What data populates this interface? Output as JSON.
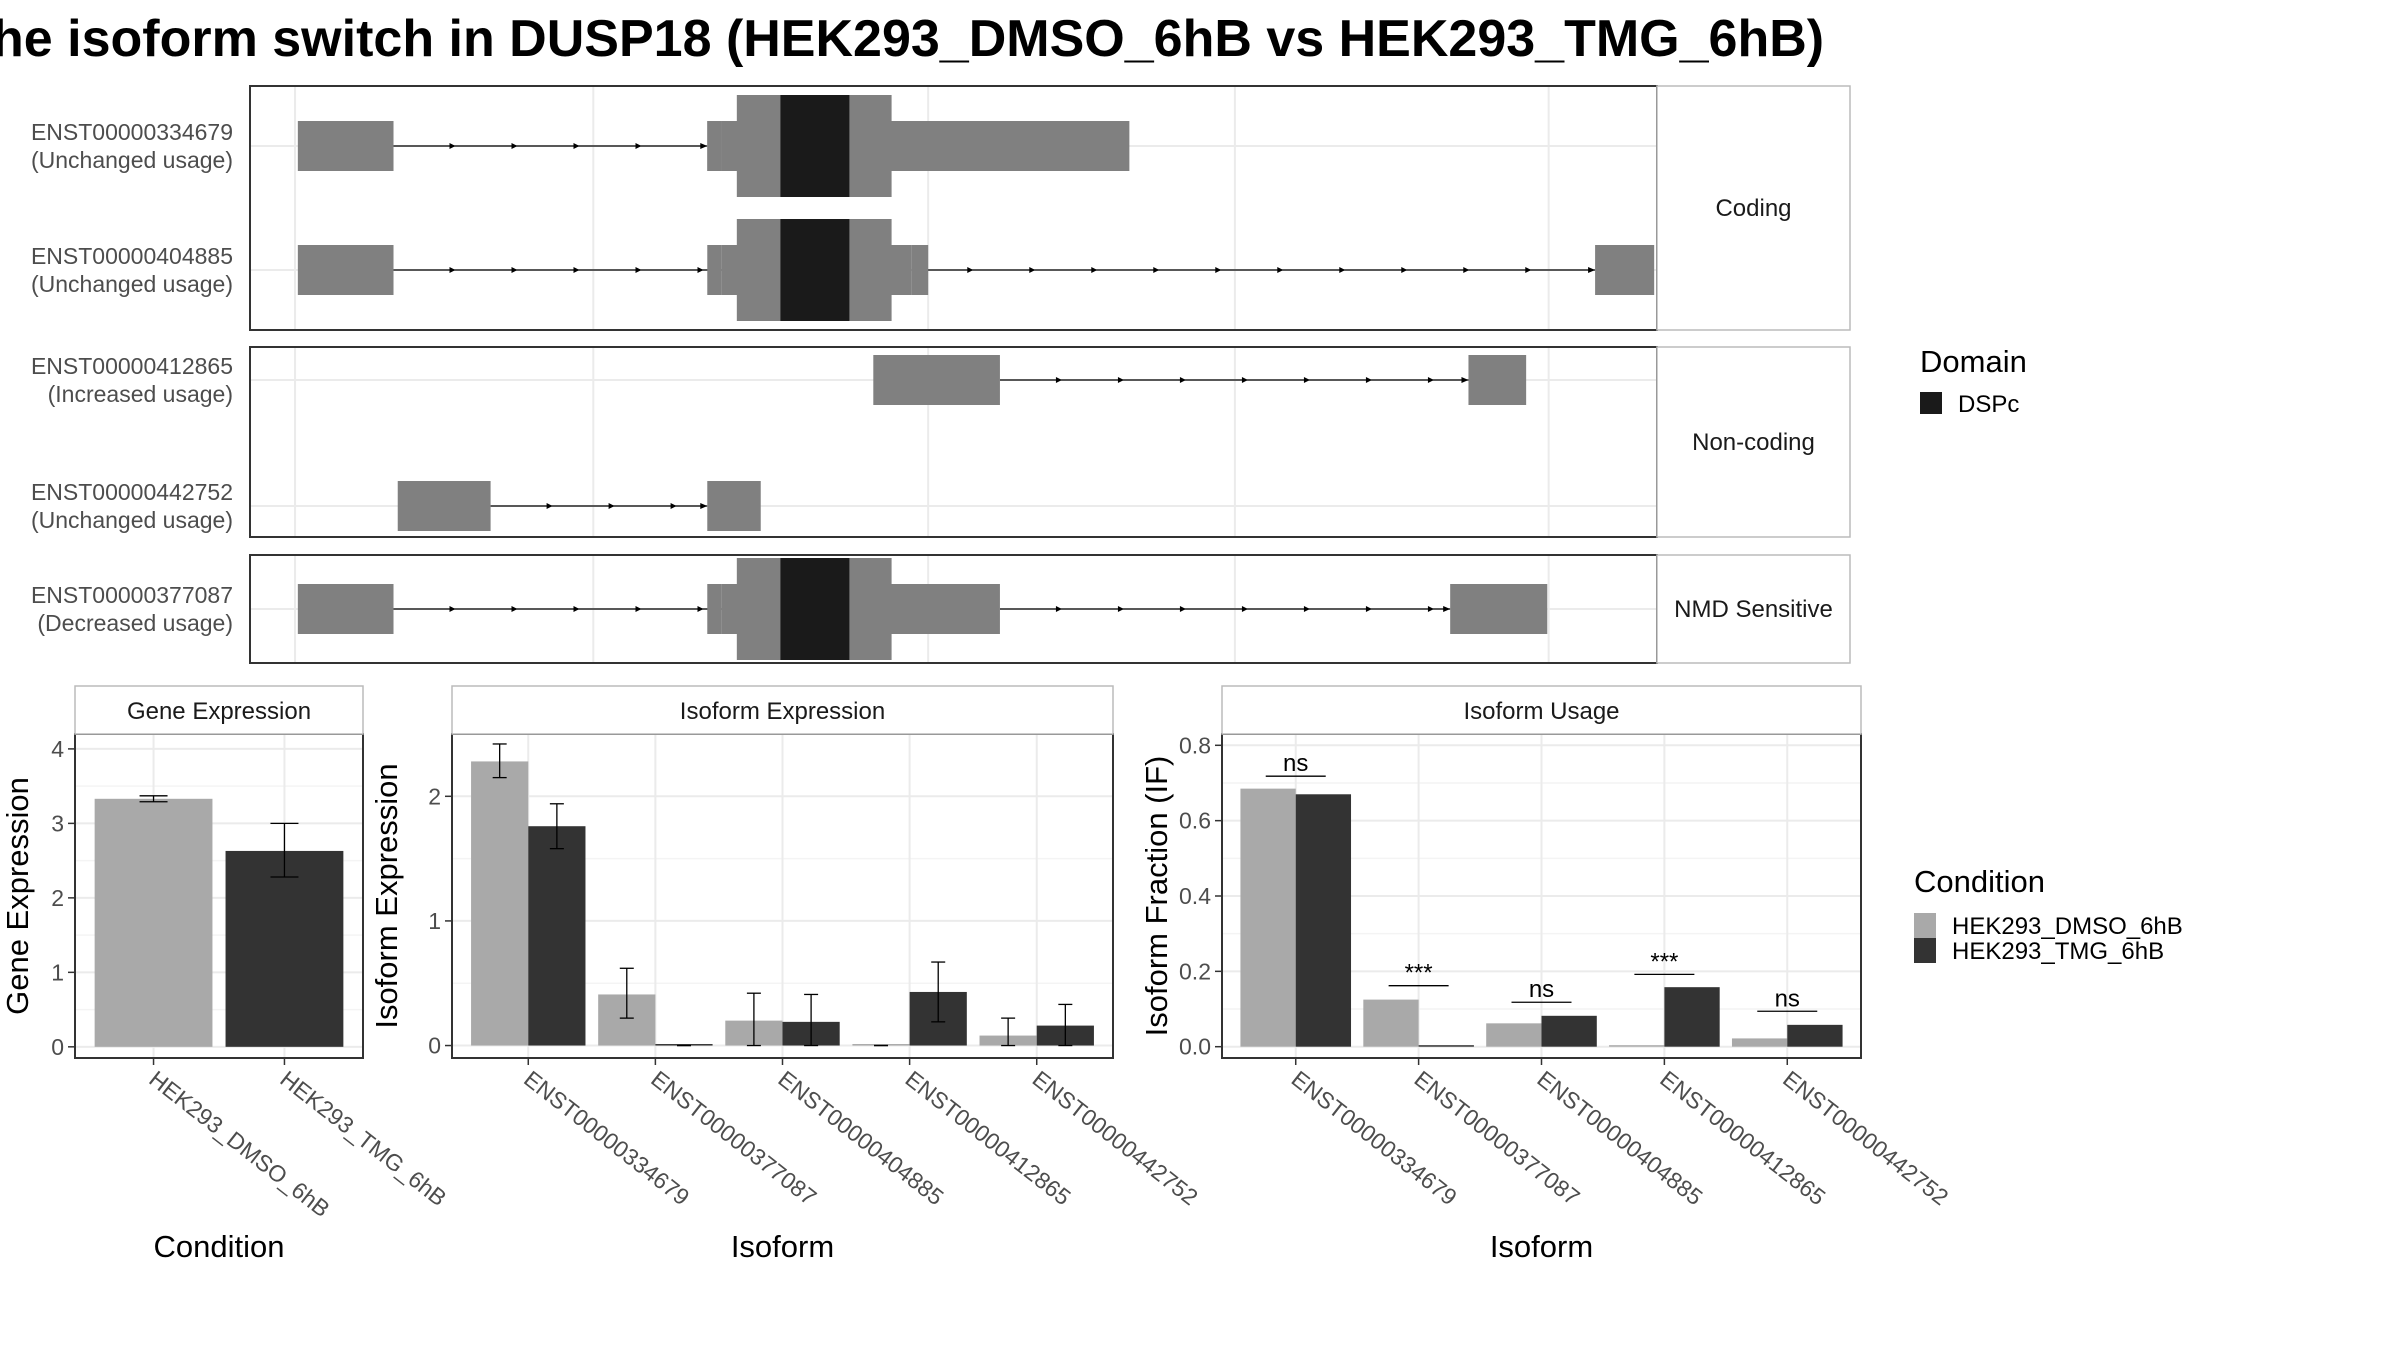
{
  "title": "he isoform switch in DUSP18 (HEK293_DMSO_6hB vs HEK293_TMG_6hB)",
  "colors": {
    "exon": "#808080",
    "domain": "#1a1a1a",
    "dmso": "#a9a9a9",
    "tmg": "#333333",
    "grid": "#ebebeb",
    "border": "#333333",
    "strip": "#ffffff"
  },
  "structure": {
    "x_range": [
      0,
      100
    ],
    "groups": [
      {
        "label": "Coding",
        "transcripts": [
          {
            "id": "ENST00000334679",
            "usage": "(Unchanged usage)",
            "exons": [
              [
                3.4,
                10.2
              ],
              [
                32.5,
                33.5
              ],
              [
                33.5,
                62.5
              ]
            ],
            "thin_segments": [
              [
                32.5,
                33.5
              ],
              [
                47,
                48.2
              ]
            ],
            "domains": [
              [
                37.7,
                42.6
              ]
            ]
          },
          {
            "id": "ENST00000404885",
            "usage": "(Unchanged usage)",
            "exons": [
              [
                3.4,
                10.2
              ],
              [
                33.5,
                47
              ],
              [
                95.6,
                99.8
              ]
            ],
            "thin_segments": [
              [
                32.5,
                33.5
              ],
              [
                47,
                48.2
              ]
            ],
            "domains": [
              [
                37.7,
                42.6
              ]
            ]
          }
        ]
      },
      {
        "label": "Non-coding",
        "transcripts": [
          {
            "id": "ENST00000412865",
            "usage": "(Increased usage)",
            "exons": [
              [
                44.3,
                53.3
              ],
              [
                86.6,
                90.7
              ]
            ],
            "thin_segments": [],
            "domains": []
          },
          {
            "id": "ENST00000442752",
            "usage": "(Unchanged usage)",
            "exons": [
              [
                10.5,
                17.1
              ],
              [
                32.5,
                36.3
              ]
            ],
            "thin_segments": [],
            "domains": []
          }
        ]
      },
      {
        "label": "NMD Sensitive",
        "transcripts": [
          {
            "id": "ENST00000377087",
            "usage": "(Decreased usage)",
            "exons": [
              [
                3.4,
                10.2
              ],
              [
                33.5,
                53.3
              ],
              [
                85.3,
                92.2
              ]
            ],
            "thin_segments": [
              [
                32.5,
                33.5
              ]
            ],
            "domains": [
              [
                37.7,
                42.6
              ]
            ]
          }
        ]
      }
    ]
  },
  "domain_legend": {
    "title": "Domain",
    "items": [
      {
        "label": "DSPc",
        "color": "#1a1a1a"
      }
    ]
  },
  "condition_legend": {
    "title": "Condition",
    "items": [
      {
        "label": "HEK293_DMSO_6hB",
        "color": "#a9a9a9"
      },
      {
        "label": "HEK293_TMG_6hB",
        "color": "#333333"
      }
    ]
  },
  "chart_data": [
    {
      "type": "bar",
      "title": "Gene Expression",
      "xlabel": "Condition",
      "ylabel": "Gene Expression",
      "ylim": [
        -0.15,
        4.2
      ],
      "yticks": [
        0,
        1,
        2,
        3,
        4
      ],
      "categories": [
        "HEK293_DMSO_6hB",
        "HEK293_TMG_6hB"
      ],
      "values": [
        3.33,
        2.63
      ],
      "errors": [
        [
          3.29,
          3.37
        ],
        [
          2.28,
          3.0
        ]
      ]
    },
    {
      "type": "bar",
      "title": "Isoform Expression",
      "xlabel": "Isoform",
      "ylabel": "Isoform Expression",
      "ylim": [
        -0.1,
        2.5
      ],
      "yticks": [
        0,
        1,
        2
      ],
      "categories": [
        "ENST00000334679",
        "ENST00000377087",
        "ENST00000404885",
        "ENST00000412865",
        "ENST00000442752"
      ],
      "series": [
        {
          "name": "HEK293_DMSO_6hB",
          "values": [
            2.28,
            0.41,
            0.2,
            0.0,
            0.08
          ],
          "errors": [
            [
              2.15,
              2.42
            ],
            [
              0.22,
              0.62
            ],
            [
              0.0,
              0.42
            ],
            [
              0.0,
              0.0
            ],
            [
              0.0,
              0.22
            ]
          ]
        },
        {
          "name": "HEK293_TMG_6hB",
          "values": [
            1.76,
            0.0,
            0.19,
            0.43,
            0.16
          ],
          "errors": [
            [
              1.58,
              1.94
            ],
            [
              0.0,
              0.0
            ],
            [
              0.0,
              0.41
            ],
            [
              0.19,
              0.67
            ],
            [
              0.0,
              0.33
            ]
          ]
        }
      ]
    },
    {
      "type": "bar",
      "title": "Isoform Usage",
      "xlabel": "Isoform",
      "ylabel": "Isoform Fraction (IF)",
      "ylim": [
        -0.03,
        0.83
      ],
      "yticks": [
        0.0,
        0.2,
        0.4,
        0.6,
        0.8
      ],
      "ytick_labels": [
        "0.0",
        "0.2",
        "0.4",
        "0.6",
        "0.8"
      ],
      "categories": [
        "ENST00000334679",
        "ENST00000377087",
        "ENST00000404885",
        "ENST00000412865",
        "ENST00000442752"
      ],
      "series": [
        {
          "name": "HEK293_DMSO_6hB",
          "values": [
            0.685,
            0.125,
            0.062,
            0.0,
            0.022
          ]
        },
        {
          "name": "HEK293_TMG_6hB",
          "values": [
            0.67,
            0.0,
            0.082,
            0.158,
            0.058
          ]
        }
      ],
      "significance": [
        {
          "label": "ns",
          "y": 0.718
        },
        {
          "label": "***",
          "y": 0.162
        },
        {
          "label": "ns",
          "y": 0.118
        },
        {
          "label": "***",
          "y": 0.192
        },
        {
          "label": "ns",
          "y": 0.094
        }
      ]
    }
  ]
}
